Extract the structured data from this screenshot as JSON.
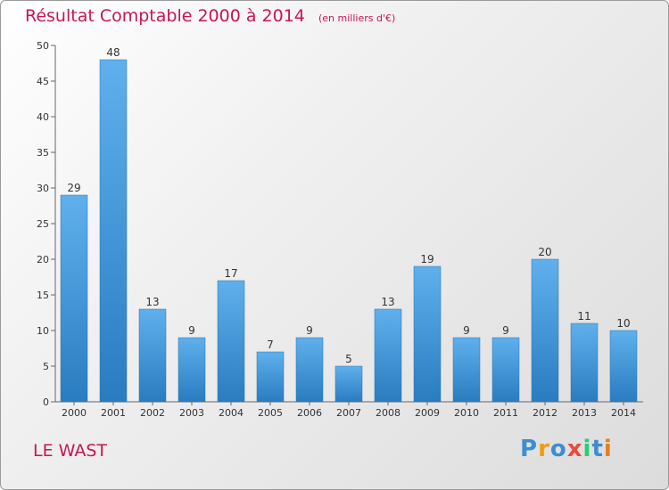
{
  "chart_data": {
    "type": "bar",
    "title": "Résultat Comptable 2000 à 2014",
    "subtitle": "(en milliers d'€)",
    "categories": [
      "2000",
      "2001",
      "2002",
      "2003",
      "2004",
      "2005",
      "2006",
      "2007",
      "2008",
      "2009",
      "2010",
      "2011",
      "2012",
      "2013",
      "2014"
    ],
    "values": [
      29,
      48,
      13,
      9,
      17,
      7,
      9,
      5,
      13,
      19,
      9,
      9,
      20,
      11,
      10
    ],
    "ylim": [
      0,
      50
    ],
    "yticks": [
      0,
      5,
      10,
      15,
      20,
      25,
      30,
      35,
      40,
      45,
      50
    ],
    "xlabel": "",
    "ylabel": "",
    "grid": false,
    "bar_color": "#3a8fd6"
  },
  "location": "LE WAST",
  "brand": {
    "letters": [
      "P",
      "r",
      "o",
      "x",
      "i",
      "t",
      "i"
    ],
    "colors": [
      "#3b8ed0",
      "#f39c12",
      "#3b8ed0",
      "#e74c3c",
      "#2ecc71",
      "#3b8ed0",
      "#e67e22"
    ]
  }
}
